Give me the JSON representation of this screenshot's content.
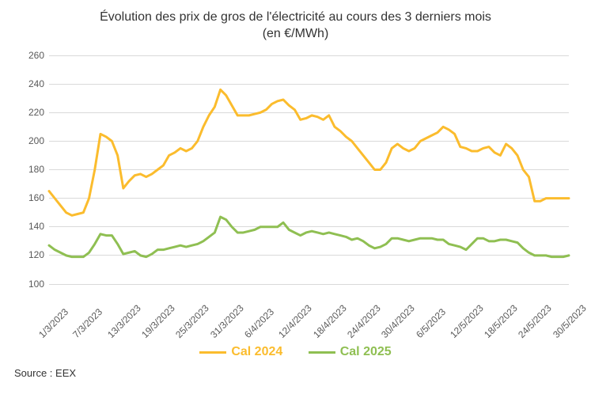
{
  "title_line1": "Évolution des prix de gros de l'électricité au cours des 3 derniers mois",
  "title_line2": "(en €/MWh)",
  "source_label": "Source : EEX",
  "chart": {
    "type": "line",
    "background_color": "#ffffff",
    "grid_color": "#d9d9d9",
    "axis_color": "#bfbfbf",
    "text_color": "#595959",
    "title_fontsize": 16,
    "tick_fontsize": 12,
    "legend_fontsize": 16,
    "line_width": 3,
    "ylim": [
      100,
      260
    ],
    "ytick_step": 20,
    "x_categories": [
      "1/3/2023",
      "2/3/2023",
      "3/3/2023",
      "4/3/2023",
      "5/3/2023",
      "6/3/2023",
      "7/3/2023",
      "8/3/2023",
      "9/3/2023",
      "10/3/2023",
      "11/3/2023",
      "12/3/2023",
      "13/3/2023",
      "14/3/2023",
      "15/3/2023",
      "16/3/2023",
      "17/3/2023",
      "18/3/2023",
      "19/3/2023",
      "20/3/2023",
      "21/3/2023",
      "22/3/2023",
      "23/3/2023",
      "24/3/2023",
      "25/3/2023",
      "26/3/2023",
      "27/3/2023",
      "28/3/2023",
      "29/3/2023",
      "30/3/2023",
      "31/3/2023",
      "1/4/2023",
      "2/4/2023",
      "3/4/2023",
      "4/4/2023",
      "5/4/2023",
      "6/4/2023",
      "7/4/2023",
      "8/4/2023",
      "9/4/2023",
      "10/4/2023",
      "11/4/2023",
      "12/4/2023",
      "13/4/2023",
      "14/4/2023",
      "15/4/2023",
      "16/4/2023",
      "17/4/2023",
      "18/4/2023",
      "19/4/2023",
      "20/4/2023",
      "21/4/2023",
      "22/4/2023",
      "23/4/2023",
      "24/4/2023",
      "25/4/2023",
      "26/4/2023",
      "27/4/2023",
      "28/4/2023",
      "29/4/2023",
      "30/4/2023",
      "1/5/2023",
      "2/5/2023",
      "3/5/2023",
      "4/5/2023",
      "5/5/2023",
      "6/5/2023",
      "7/5/2023",
      "8/5/2023",
      "9/5/2023",
      "10/5/2023",
      "11/5/2023",
      "12/5/2023",
      "13/5/2023",
      "14/5/2023",
      "15/5/2023",
      "16/5/2023",
      "17/5/2023",
      "18/5/2023",
      "19/5/2023",
      "20/5/2023",
      "21/5/2023",
      "22/5/2023",
      "23/5/2023",
      "24/5/2023",
      "25/5/2023",
      "26/5/2023",
      "27/5/2023",
      "28/5/2023",
      "29/5/2023",
      "30/5/2023",
      "31/5/2023"
    ],
    "x_tick_labels": [
      "1/3/2023",
      "7/3/2023",
      "13/3/2023",
      "19/3/2023",
      "25/3/2023",
      "31/3/2023",
      "6/4/2023",
      "12/4/2023",
      "18/4/2023",
      "24/4/2023",
      "30/4/2023",
      "6/5/2023",
      "12/5/2023",
      "18/5/2023",
      "24/5/2023",
      "30/5/2023"
    ],
    "x_tick_indices": [
      0,
      6,
      12,
      18,
      24,
      30,
      36,
      42,
      48,
      54,
      60,
      66,
      72,
      78,
      84,
      90
    ],
    "series": [
      {
        "name": "Cal 2024",
        "color": "#fbbc2d",
        "values": [
          165,
          160,
          155,
          150,
          148,
          149,
          150,
          160,
          180,
          205,
          203,
          200,
          190,
          167,
          172,
          176,
          177,
          175,
          177,
          180,
          183,
          190,
          192,
          195,
          193,
          195,
          200,
          210,
          218,
          224,
          236,
          232,
          225,
          218,
          218,
          218,
          219,
          220,
          222,
          226,
          228,
          229,
          225,
          222,
          215,
          216,
          218,
          217,
          215,
          218,
          210,
          207,
          203,
          200,
          195,
          190,
          185,
          180,
          180,
          185,
          195,
          198,
          195,
          193,
          195,
          200,
          202,
          204,
          206,
          210,
          208,
          205,
          196,
          195,
          193,
          193,
          195,
          196,
          192,
          190,
          198,
          195,
          190,
          180,
          175,
          158,
          158,
          160,
          160,
          160,
          160,
          160
        ]
      },
      {
        "name": "Cal 2025",
        "color": "#8fbf52",
        "values": [
          127,
          124,
          122,
          120,
          119,
          119,
          119,
          122,
          128,
          135,
          134,
          134,
          128,
          121,
          122,
          123,
          120,
          119,
          121,
          124,
          124,
          125,
          126,
          127,
          126,
          127,
          128,
          130,
          133,
          136,
          147,
          145,
          140,
          136,
          136,
          137,
          138,
          140,
          140,
          140,
          140,
          143,
          138,
          136,
          134,
          136,
          137,
          136,
          135,
          136,
          135,
          134,
          133,
          131,
          132,
          130,
          127,
          125,
          126,
          128,
          132,
          132,
          131,
          130,
          131,
          132,
          132,
          132,
          131,
          131,
          128,
          127,
          126,
          124,
          128,
          132,
          132,
          130,
          130,
          131,
          131,
          130,
          129,
          125,
          122,
          120,
          120,
          120,
          119,
          119,
          119,
          120
        ]
      }
    ]
  },
  "legend": {
    "items": [
      {
        "label": "Cal 2024",
        "color": "#fbbc2d"
      },
      {
        "label": "Cal 2025",
        "color": "#8fbf52"
      }
    ]
  }
}
